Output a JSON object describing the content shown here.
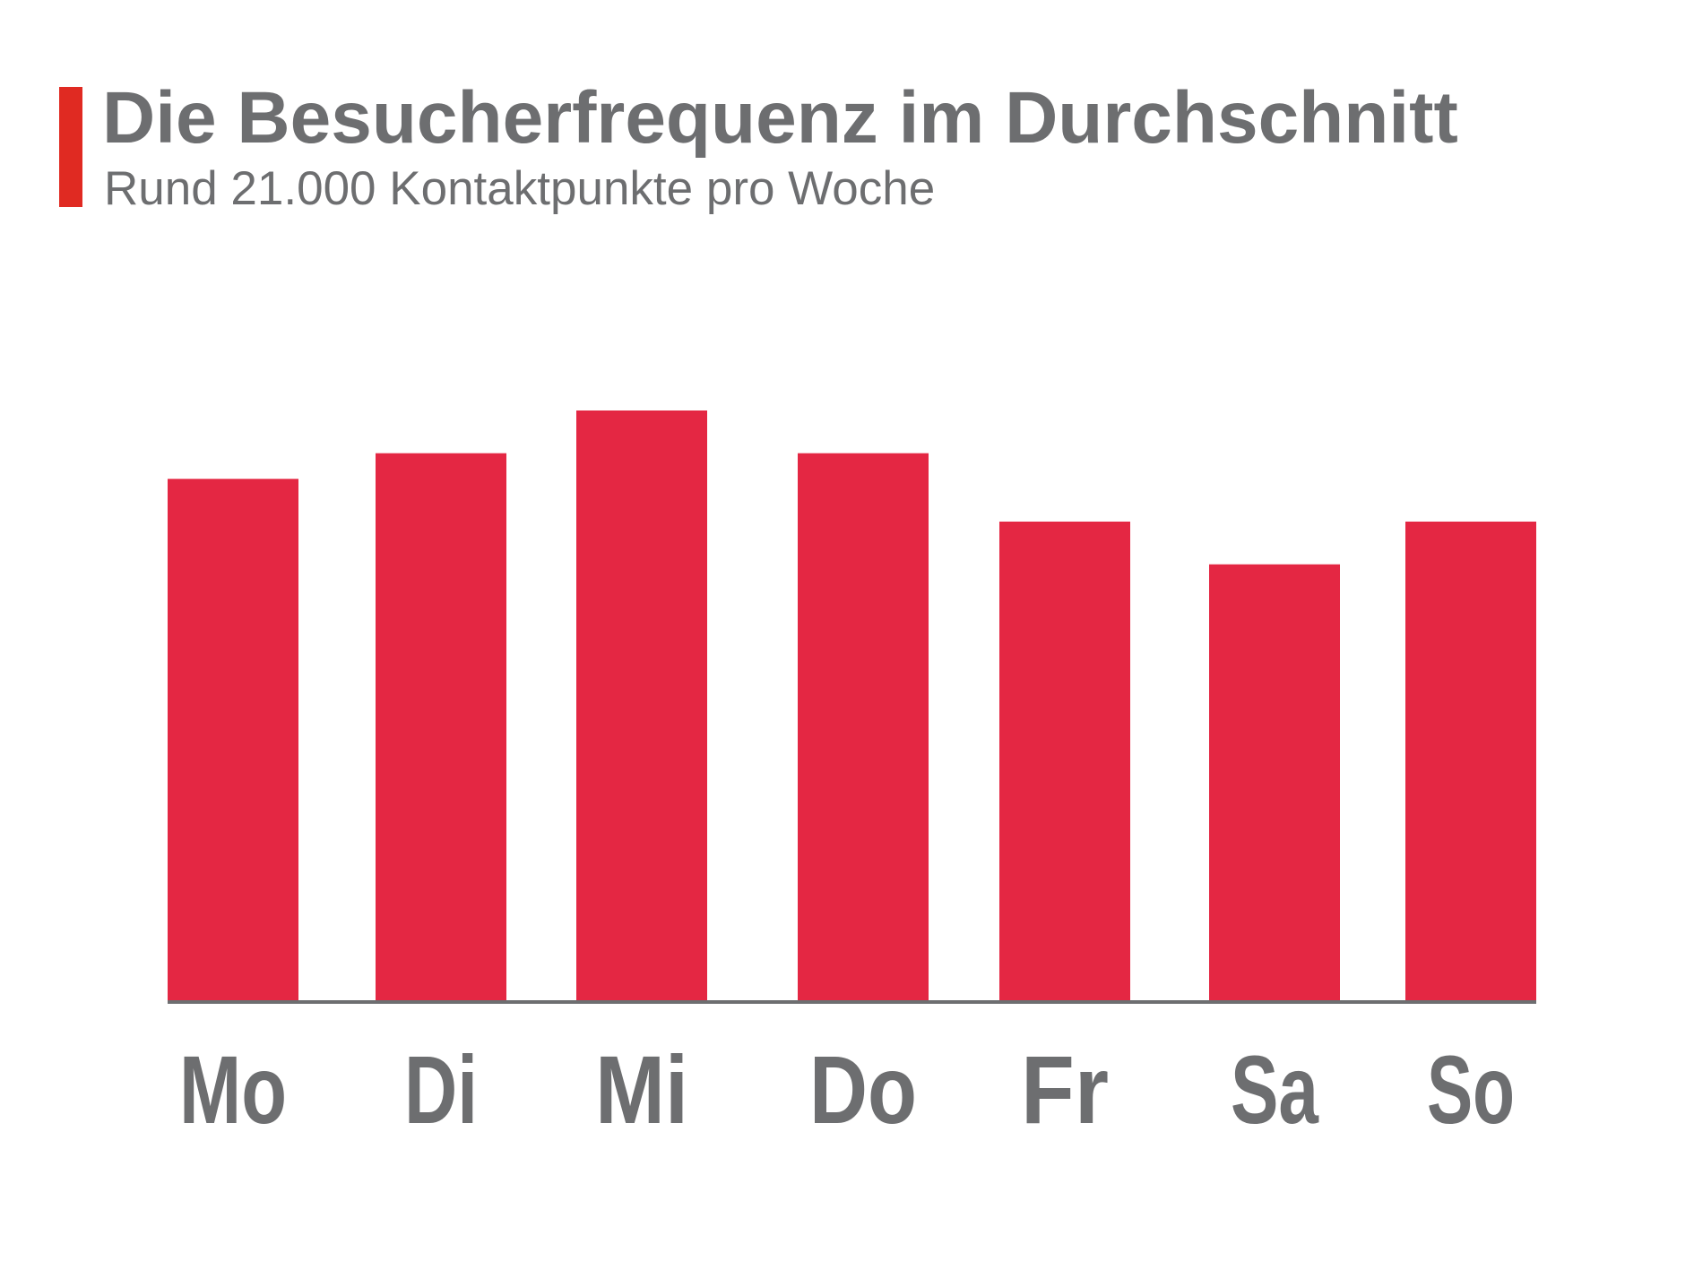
{
  "header": {
    "title": "Die Besucherfrequenz im Durchschnitt",
    "subtitle": "Rund 21.000 Kontaktpunkte pro Woche",
    "accent_color": "#e02a22"
  },
  "chart_data": {
    "type": "bar",
    "title": "Die Besucherfrequenz im Durchschnitt",
    "subtitle": "Rund 21.000 Kontaktpunkte pro Woche",
    "categories": [
      "Mo",
      "Di",
      "Mi",
      "Do",
      "Fr",
      "Sa",
      "So"
    ],
    "values": [
      3050,
      3200,
      3450,
      3200,
      2800,
      2550,
      2800
    ],
    "ylim": [
      0,
      3450
    ],
    "xlabel": "",
    "ylabel": "",
    "grid": false,
    "legend": "none",
    "bar_color": "#e42743",
    "axis_color": "#6d6e70",
    "label_color": "#6d6e70"
  }
}
